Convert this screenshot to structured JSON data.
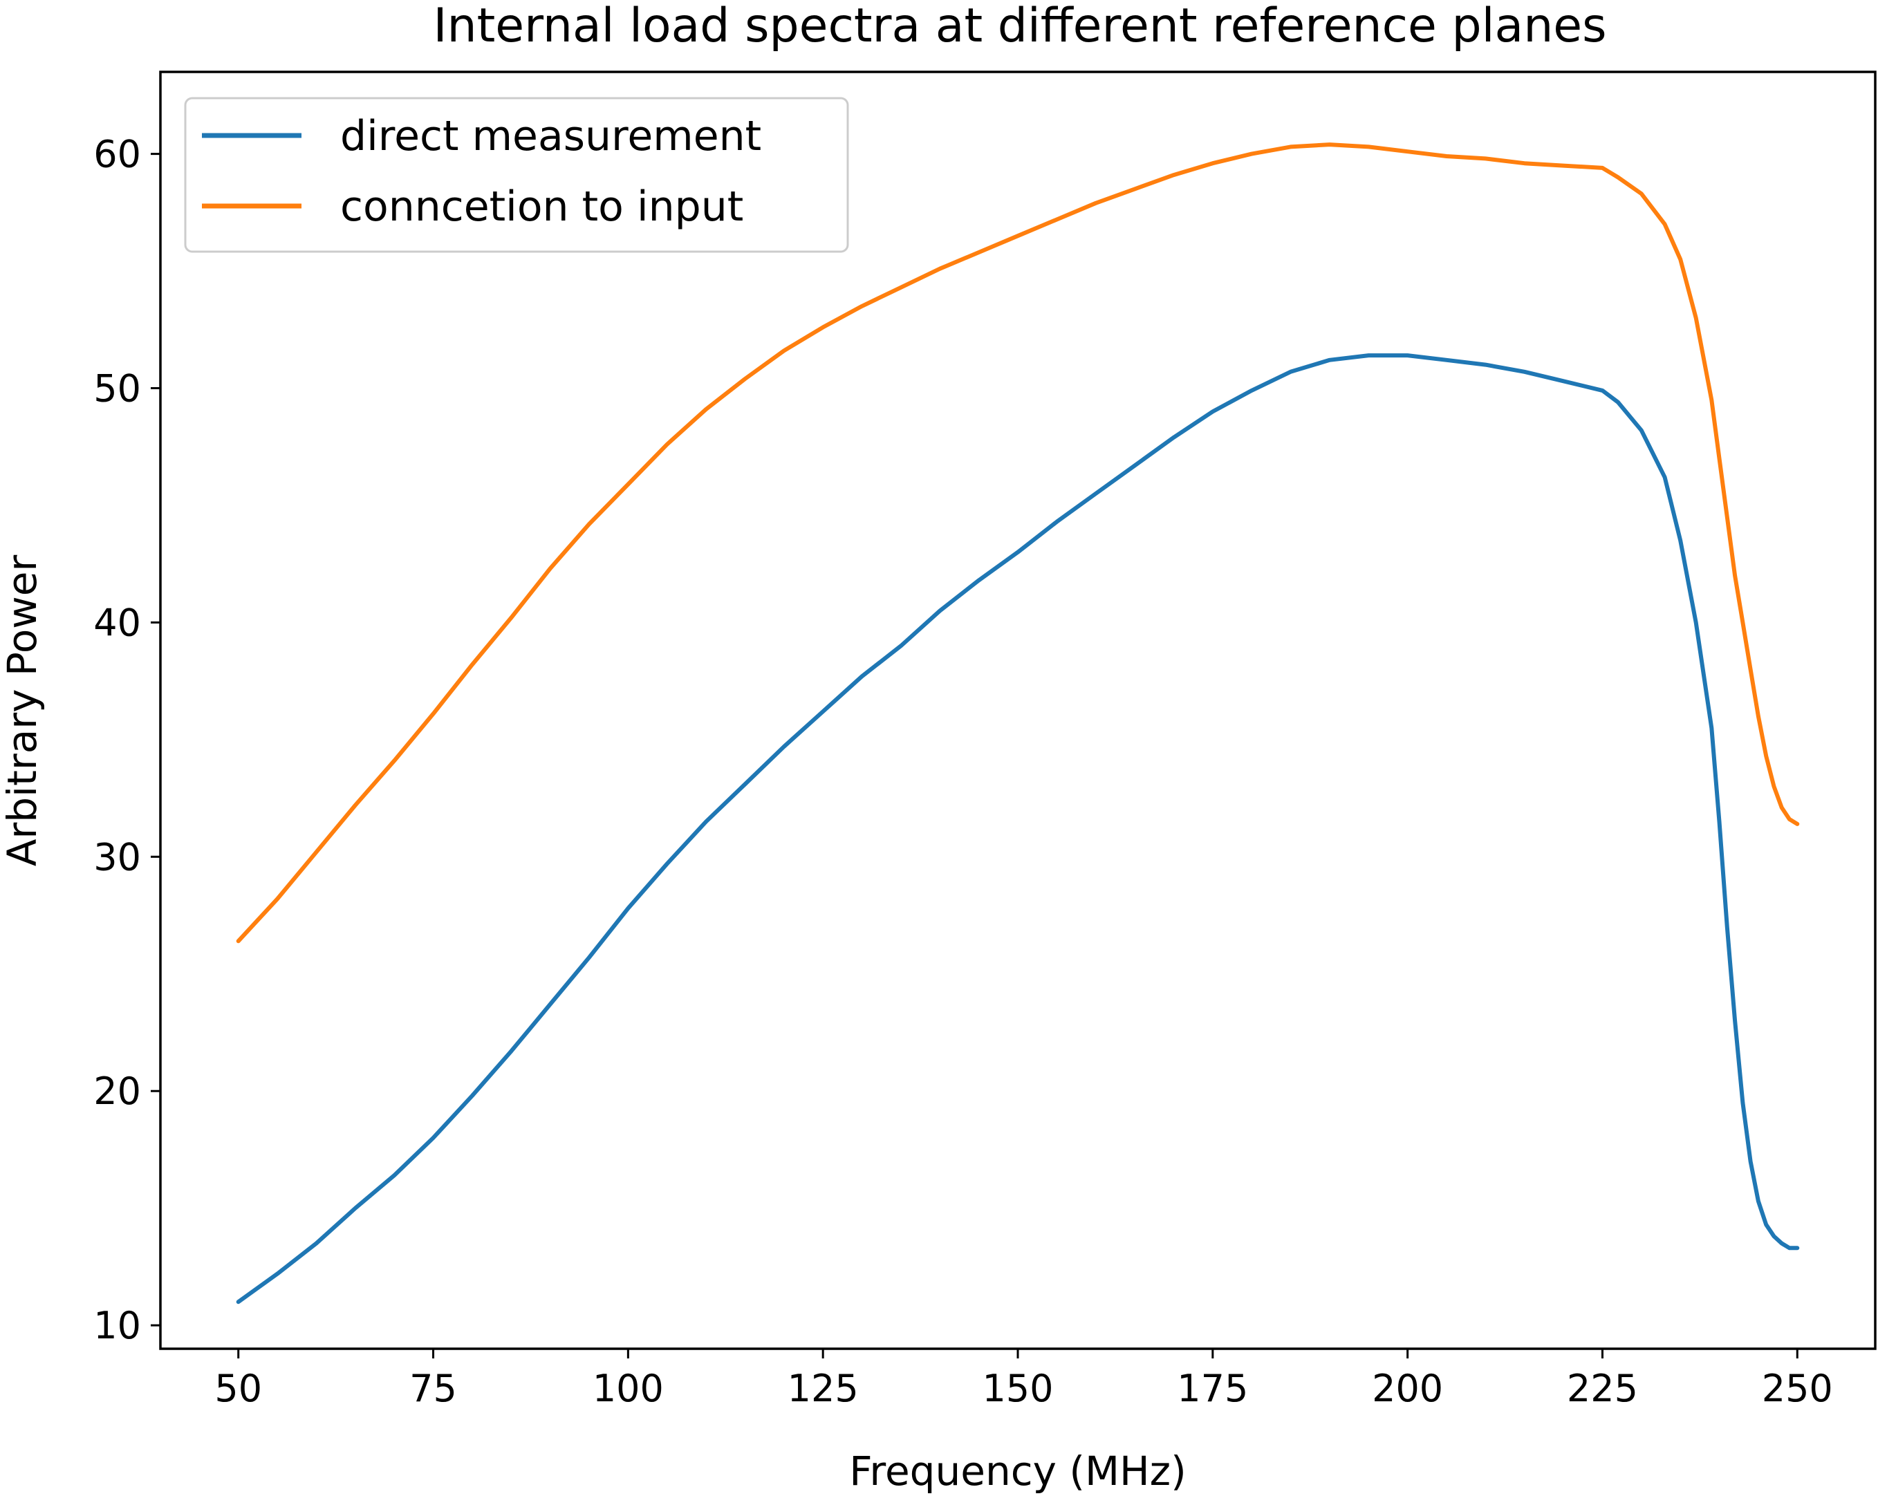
{
  "chart_data": {
    "type": "line",
    "title": "Internal load spectra at different reference planes",
    "xlabel": "Frequency (MHz)",
    "ylabel": "Arbitrary Power",
    "xlim": [
      40,
      260
    ],
    "ylim": [
      9,
      63.5
    ],
    "xticks": [
      50,
      75,
      100,
      125,
      150,
      175,
      200,
      225,
      250
    ],
    "yticks": [
      10,
      20,
      30,
      40,
      50,
      60
    ],
    "grid": false,
    "legend_position": "upper-left",
    "series": [
      {
        "name": "direct measurement",
        "color": "#1f77b4",
        "x": [
          50,
          55,
          60,
          65,
          70,
          75,
          80,
          85,
          90,
          95,
          100,
          105,
          110,
          115,
          120,
          125,
          130,
          135,
          140,
          145,
          150,
          155,
          160,
          165,
          170,
          175,
          180,
          185,
          190,
          195,
          200,
          205,
          210,
          215,
          220,
          225,
          227,
          230,
          233,
          235,
          237,
          239,
          240,
          241,
          242,
          243,
          244,
          245,
          246,
          247,
          248,
          249,
          250
        ],
        "y": [
          11.0,
          12.2,
          13.5,
          15.0,
          16.4,
          18.0,
          19.8,
          21.7,
          23.7,
          25.7,
          27.8,
          29.7,
          31.5,
          33.1,
          34.7,
          36.2,
          37.7,
          39.0,
          40.5,
          41.8,
          43.0,
          44.3,
          45.5,
          46.7,
          47.9,
          49.0,
          49.9,
          50.7,
          51.2,
          51.4,
          51.4,
          51.2,
          51.0,
          50.7,
          50.3,
          49.9,
          49.4,
          48.2,
          46.2,
          43.5,
          40.0,
          35.5,
          31.5,
          27.0,
          23.0,
          19.5,
          17.0,
          15.3,
          14.3,
          13.8,
          13.5,
          13.3,
          13.3
        ]
      },
      {
        "name": "conncetion to input",
        "color": "#ff7f0e",
        "x": [
          50,
          55,
          60,
          65,
          70,
          75,
          80,
          85,
          90,
          95,
          100,
          105,
          110,
          115,
          120,
          125,
          130,
          135,
          140,
          145,
          150,
          155,
          160,
          165,
          170,
          175,
          180,
          185,
          190,
          195,
          200,
          205,
          210,
          215,
          220,
          225,
          227,
          230,
          233,
          235,
          237,
          239,
          240,
          241,
          242,
          243,
          244,
          245,
          246,
          247,
          248,
          249,
          250
        ],
        "y": [
          26.4,
          28.2,
          30.2,
          32.2,
          34.1,
          36.1,
          38.2,
          40.2,
          42.3,
          44.2,
          45.9,
          47.6,
          49.1,
          50.4,
          51.6,
          52.6,
          53.5,
          54.3,
          55.1,
          55.8,
          56.5,
          57.2,
          57.9,
          58.5,
          59.1,
          59.6,
          60.0,
          60.3,
          60.4,
          60.3,
          60.1,
          59.9,
          59.8,
          59.6,
          59.5,
          59.4,
          59.0,
          58.3,
          57.0,
          55.5,
          53.0,
          49.5,
          47.0,
          44.5,
          42.0,
          40.0,
          38.0,
          36.0,
          34.3,
          33.0,
          32.1,
          31.6,
          31.4
        ]
      }
    ]
  }
}
